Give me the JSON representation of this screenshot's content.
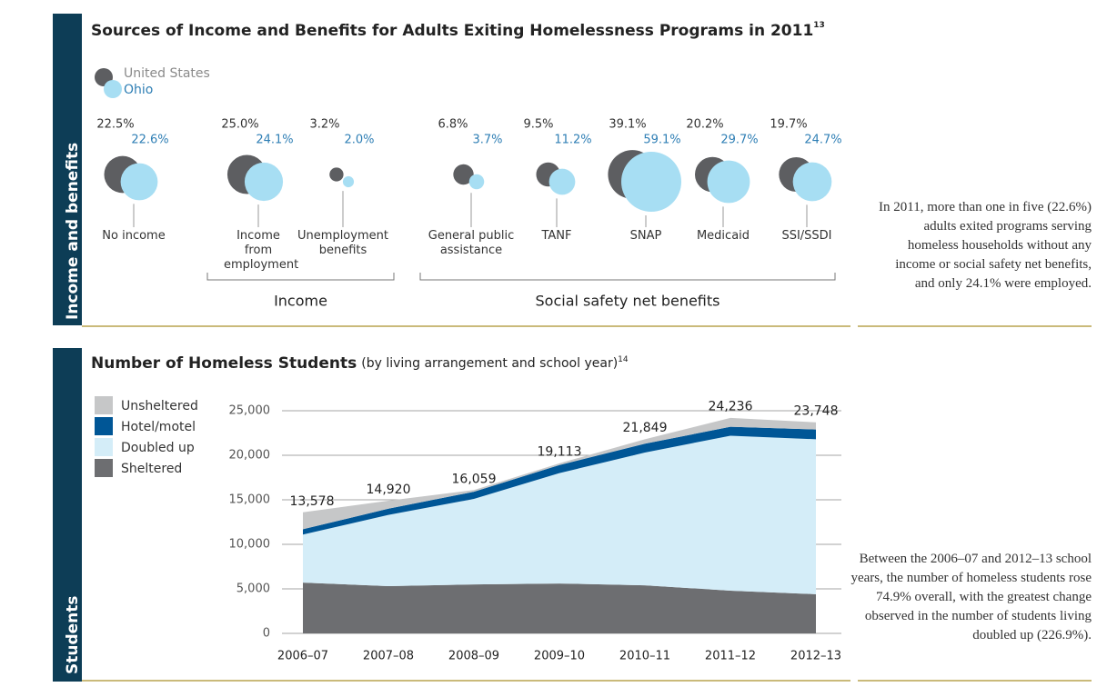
{
  "sections": [
    {
      "label": "Income and benefits",
      "note": "In 2011, more than one in five (22.6%) adults exited programs serving homeless households without any income or social safety net benefits, and only 24.1% were employed."
    },
    {
      "label": "Students",
      "note": "Between the 2006–07 and 2012–13 school years, the number of homeless students rose 74.9% overall, with the greatest change observed in the number of students living doubled up (226.9%)."
    }
  ],
  "chart_data": [
    {
      "type": "bubble",
      "title": "Sources of Income and Benefits for Adults Exiting Homelessness Programs in 2011",
      "title_note": "13",
      "categories": [
        "No income",
        "Income from employment",
        "Unemployment benefits",
        "General public assistance",
        "TANF",
        "SNAP",
        "Medicaid",
        "SSI/SSDI"
      ],
      "series": [
        {
          "name": "United States",
          "color": "#5d5e61",
          "label_color": "#8a8a8a",
          "values": [
            22.5,
            25.0,
            3.2,
            6.8,
            9.5,
            39.1,
            20.2,
            19.7
          ],
          "value_labels": [
            "22.5%",
            "25.0%",
            "3.2%",
            "6.8%",
            "9.5%",
            "39.1%",
            "20.2%",
            "19.7%"
          ]
        },
        {
          "name": "Ohio",
          "color": "#a7def3",
          "label_color": "#2f7fb5",
          "values": [
            22.6,
            24.1,
            2.0,
            3.7,
            11.2,
            59.1,
            29.7,
            24.7
          ],
          "value_labels": [
            "22.6%",
            "24.1%",
            "2.0%",
            "3.7%",
            "11.2%",
            "59.1%",
            "29.7%",
            "24.7%"
          ]
        }
      ],
      "groups": [
        {
          "label": "Income"
        },
        {
          "label": "Social safety net benefits"
        }
      ]
    },
    {
      "type": "area",
      "stacked": true,
      "title": "Number of Homeless Students",
      "subtitle": "(by living arrangement and school year)",
      "title_note": "14",
      "categories": [
        "2006–07",
        "2007–08",
        "2008–09",
        "2009–10",
        "2010–11",
        "2011–12",
        "2012–13"
      ],
      "series": [
        {
          "name": "Sheltered",
          "color": "#6d6e71",
          "values": [
            5700,
            5300,
            5500,
            5600,
            5400,
            4800,
            4400
          ]
        },
        {
          "name": "Doubled up",
          "color": "#d4edf8",
          "values": [
            5400,
            8000,
            9600,
            12400,
            14900,
            17400,
            17400
          ]
        },
        {
          "name": "Hotel/motel",
          "color": "#005696",
          "values": [
            600,
            700,
            800,
            900,
            1000,
            1000,
            1100
          ]
        },
        {
          "name": "Unsheltered",
          "color": "#c6c7c8",
          "values": [
            1900,
            900,
            200,
            200,
            500,
            1000,
            800
          ]
        }
      ],
      "totals": {
        "values": [
          13578,
          14920,
          16059,
          19113,
          21849,
          24236,
          23748
        ],
        "value_labels": [
          "13,578",
          "14,920",
          "16,059",
          "19,113",
          "21,849",
          "24,236",
          "23,748"
        ]
      },
      "ylim": [
        0,
        25000
      ],
      "yticks": [
        0,
        {
          "value": 5000,
          "label": "5,000"
        },
        {
          "value": 10000,
          "label": "10,000"
        },
        {
          "value": 15000,
          "label": "15,000"
        },
        {
          "value": 20000,
          "label": "20,000"
        },
        {
          "value": 25000,
          "label": "25,000"
        }
      ],
      "grid": true
    }
  ]
}
